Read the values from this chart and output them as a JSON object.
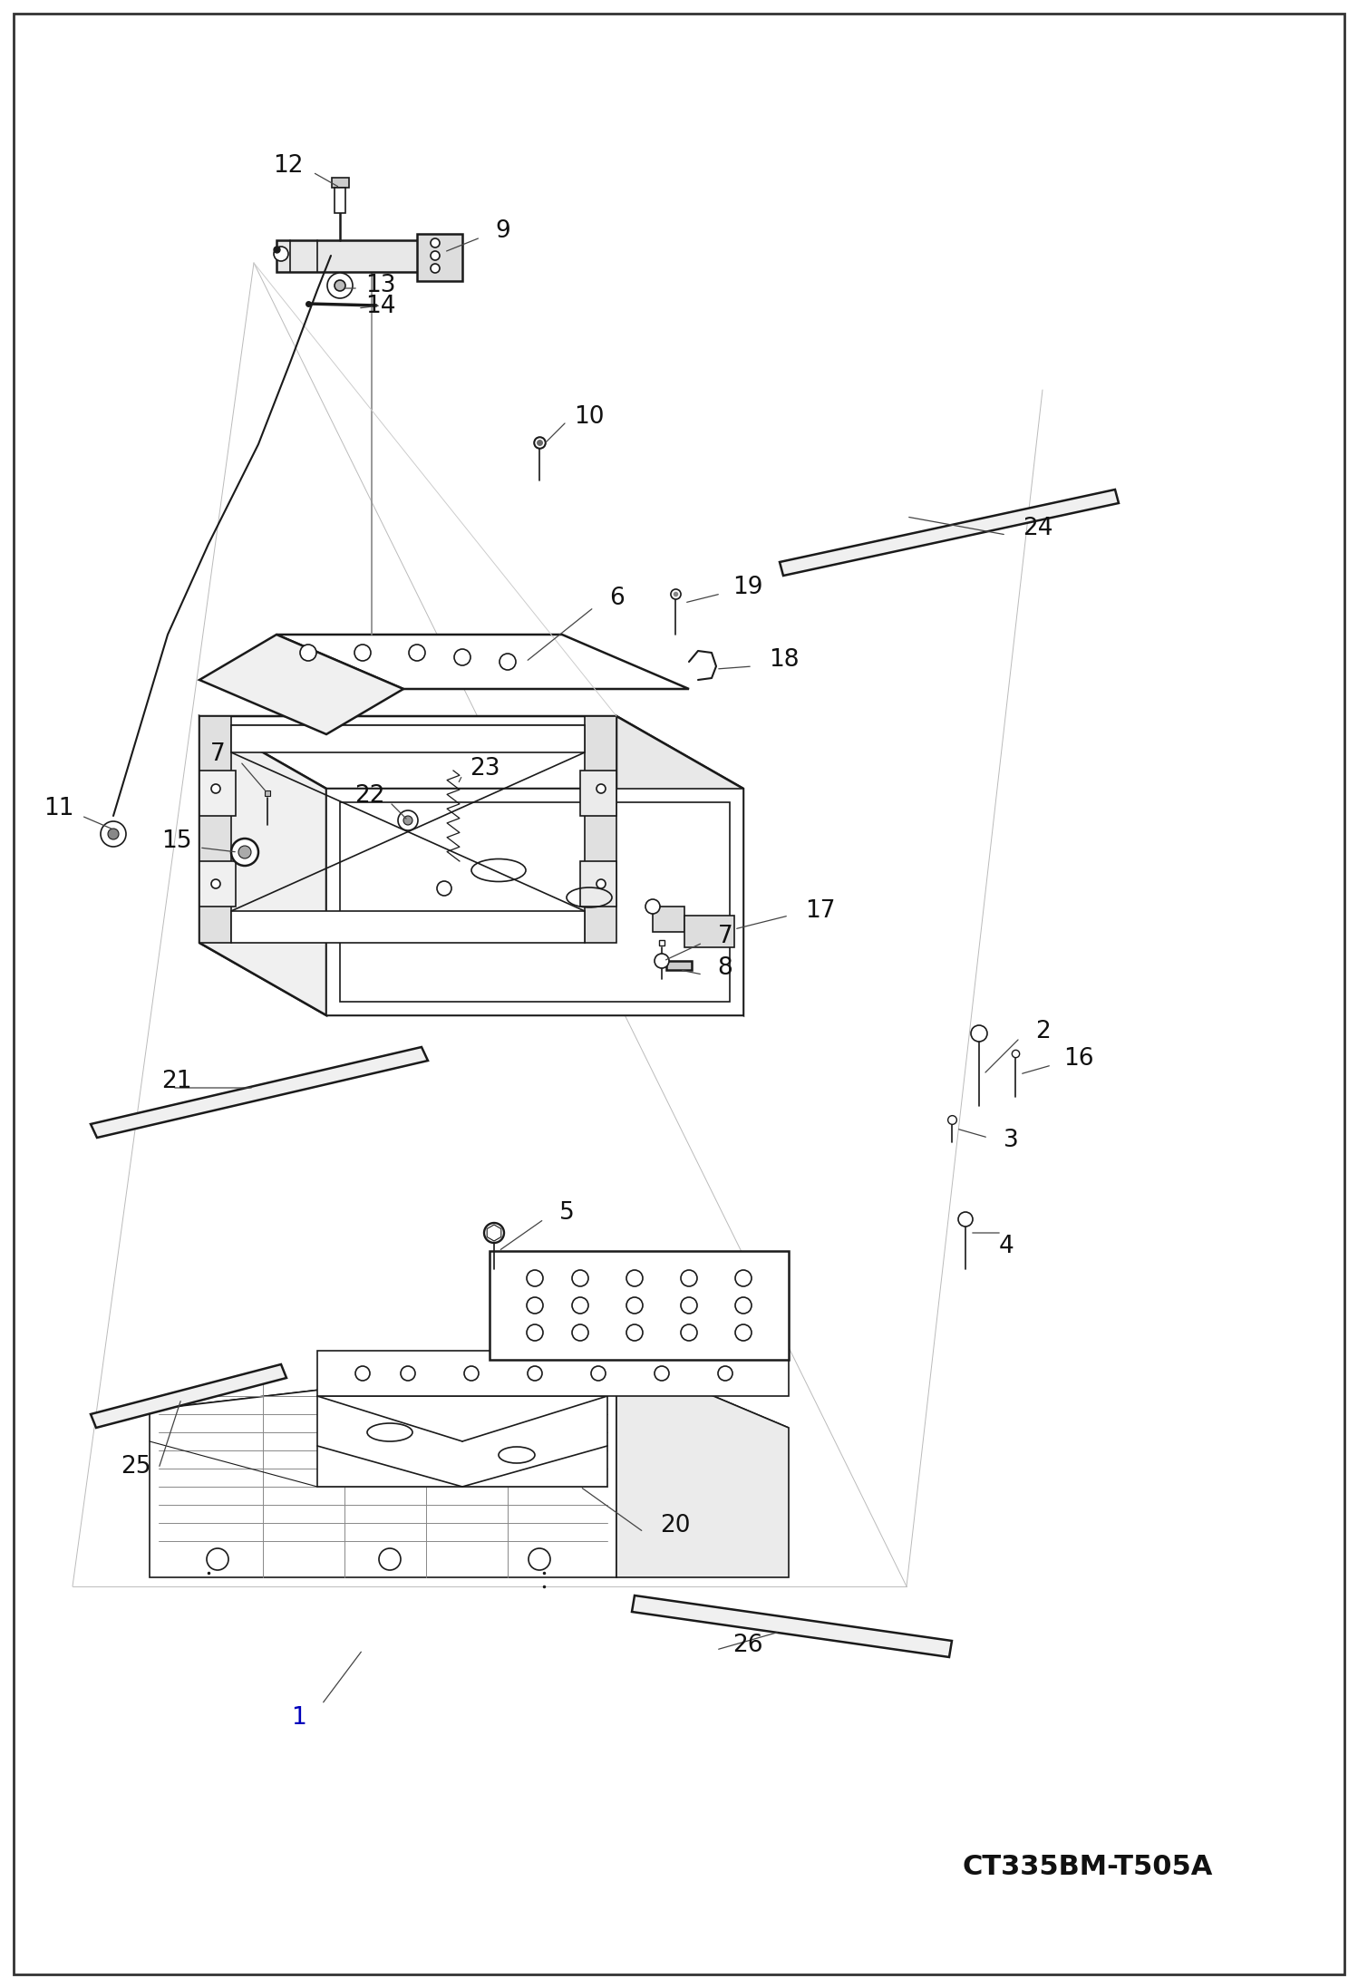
{
  "bg": "#ffffff",
  "lc": "#1a1a1a",
  "diagram_code": "CT335BM-T505A",
  "figsize": [
    14.98,
    21.93
  ],
  "dpi": 100
}
